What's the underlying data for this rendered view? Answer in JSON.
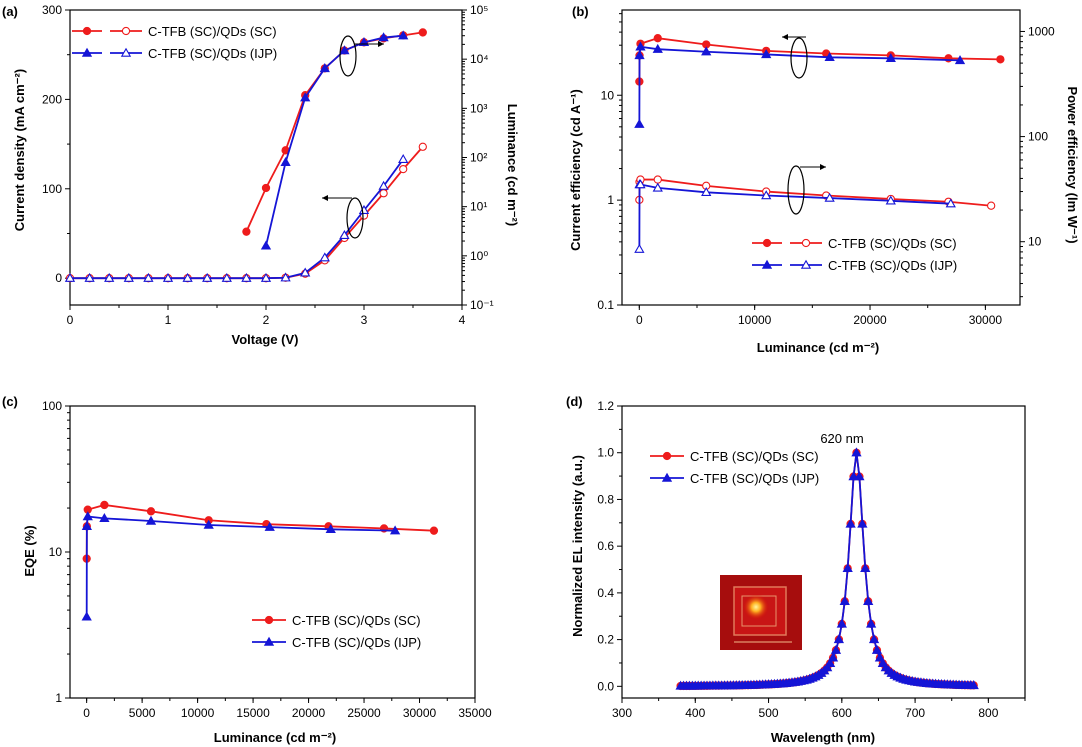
{
  "colors": {
    "sc": "#ee1c1c",
    "ijp": "#1515d6"
  },
  "legend_labels": {
    "sc": "C-TFB (SC)/QDs (SC)",
    "ijp": "C-TFB (SC)/QDs (IJP)"
  },
  "chart_data": [
    {
      "id": "a",
      "panel_label": "(a)",
      "type": "line",
      "xlabel": "Voltage (V)",
      "ylabel": "Current density (mA cm⁻²)",
      "y2label": "Luminance (cd m⁻²)",
      "xlim": [
        0,
        4
      ],
      "ylim": [
        -30,
        300
      ],
      "y2lim": [
        -1,
        5
      ],
      "y2scale": "log",
      "xticks": [
        "0",
        "1",
        "2",
        "3",
        "4"
      ],
      "yticks": [
        "0",
        "100",
        "200",
        "300"
      ],
      "y2ticks": [
        "10⁻¹",
        "10⁰",
        "10¹",
        "10²",
        "10³",
        "10⁴",
        "10⁵"
      ],
      "legend": "top-left",
      "series": [
        {
          "name": "C-TFB (SC)/QDs (SC)",
          "axis": "left",
          "marker": "circle-open",
          "x": [
            0,
            0.2,
            0.4,
            0.6,
            0.8,
            1.0,
            1.2,
            1.4,
            1.6,
            1.8,
            2.0,
            2.2,
            2.4,
            2.6,
            2.8,
            3.0,
            3.2,
            3.4,
            3.6
          ],
          "y": [
            0,
            0,
            0,
            0,
            0,
            0,
            0,
            0,
            0,
            0,
            0,
            0.5,
            5,
            20,
            45,
            70,
            95,
            122,
            147
          ]
        },
        {
          "name": "C-TFB (SC)/QDs (IJP)",
          "axis": "left",
          "marker": "triangle-open",
          "x": [
            0,
            0.2,
            0.4,
            0.6,
            0.8,
            1.0,
            1.2,
            1.4,
            1.6,
            1.8,
            2.0,
            2.2,
            2.4,
            2.6,
            2.8,
            3.0,
            3.2,
            3.4
          ],
          "y": [
            0,
            0,
            0,
            0,
            0,
            0,
            0,
            0,
            0,
            0,
            0,
            0.5,
            6,
            23,
            48,
            76,
            103,
            133
          ]
        },
        {
          "name": "C-TFB (SC)/QDs (SC)",
          "axis": "right",
          "marker": "circle-filled",
          "x": [
            1.8,
            2.0,
            2.2,
            2.4,
            2.6,
            2.8,
            3.0,
            3.2,
            3.4,
            3.6
          ],
          "y": [
            3.1,
            24,
            140,
            1850,
            6500,
            15000,
            22000,
            26500,
            30500,
            35000
          ]
        },
        {
          "name": "C-TFB (SC)/QDs (IJP)",
          "axis": "right",
          "marker": "triangle-filled",
          "x": [
            2.0,
            2.2,
            2.4,
            2.6,
            2.8,
            3.0,
            3.2,
            3.4
          ],
          "y": [
            1.6,
            80,
            1650,
            6500,
            15000,
            22000,
            27500,
            30000
          ]
        }
      ]
    },
    {
      "id": "b",
      "panel_label": "(b)",
      "type": "line",
      "xlabel": "Luminance (cd m⁻²)",
      "ylabel": "Current efficiency (cd A⁻¹)",
      "y2label": "Power efficiency (lm W⁻¹)",
      "xlim": [
        -1500,
        33000
      ],
      "ylim": [
        0.1,
        65
      ],
      "y2lim": [
        2.5,
        1600
      ],
      "yscale": "log",
      "y2scale": "log",
      "xticks": [
        "0",
        "10000",
        "20000",
        "30000"
      ],
      "yticks": [
        "0.1",
        "1",
        "10"
      ],
      "y2ticks": [
        "10",
        "100",
        "1000"
      ],
      "legend": "bottom-right",
      "series": [
        {
          "name": "C-TFB (SC)/QDs (SC)",
          "axis": "left",
          "marker": "circle-filled",
          "x": [
            5,
            20,
            100,
            1600,
            5800,
            11000,
            16200,
            21800,
            26800,
            31300
          ],
          "y": [
            13.5,
            24,
            31,
            35,
            30.5,
            26.5,
            25,
            24,
            22.5,
            22
          ]
        },
        {
          "name": "C-TFB (SC)/QDs (IJP)",
          "axis": "left",
          "marker": "triangle-filled",
          "x": [
            5,
            20,
            100,
            1600,
            5800,
            11000,
            16500,
            21800,
            27800
          ],
          "y": [
            5.3,
            24,
            29,
            27.5,
            26,
            24.5,
            23,
            22.5,
            21.5
          ]
        },
        {
          "name": "C-TFB (SC)/QDs (SC)",
          "axis": "right",
          "marker": "circle-open",
          "x": [
            5,
            20,
            100,
            1600,
            5800,
            11000,
            16200,
            21800,
            26800,
            30500
          ],
          "y": [
            25,
            37,
            39,
            39,
            34,
            30,
            27.5,
            25.5,
            24,
            22
          ]
        },
        {
          "name": "C-TFB (SC)/QDs (IJP)",
          "axis": "right",
          "marker": "triangle-open",
          "x": [
            5,
            20,
            100,
            1600,
            5800,
            11000,
            16500,
            21800,
            27000
          ],
          "y": [
            8.5,
            35,
            35,
            32.5,
            29.5,
            27.5,
            26,
            24.5,
            23
          ]
        }
      ]
    },
    {
      "id": "c",
      "panel_label": "(c)",
      "type": "line",
      "xlabel": "Luminance (cd m⁻²)",
      "ylabel": "EQE (%)",
      "xlim": [
        -1500,
        35000
      ],
      "ylim": [
        1,
        100
      ],
      "yscale": "log",
      "xticks": [
        "0",
        "5000",
        "10000",
        "15000",
        "20000",
        "25000",
        "30000",
        "35000"
      ],
      "yticks": [
        "1",
        "10",
        "100"
      ],
      "legend": "bottom-right",
      "series": [
        {
          "name": "C-TFB (SC)/QDs (SC)",
          "marker": "circle-filled",
          "x": [
            5,
            20,
            100,
            1600,
            5800,
            11000,
            16200,
            21800,
            26800,
            31300
          ],
          "y": [
            9,
            15,
            19.5,
            21,
            19,
            16.5,
            15.5,
            15,
            14.5,
            14
          ]
        },
        {
          "name": "C-TFB (SC)/QDs (IJP)",
          "marker": "triangle-filled",
          "x": [
            5,
            20,
            100,
            1600,
            5800,
            11000,
            16500,
            22000,
            27800
          ],
          "y": [
            3.6,
            15,
            17.5,
            17,
            16.3,
            15.3,
            14.8,
            14.3,
            14
          ]
        }
      ]
    },
    {
      "id": "d",
      "panel_label": "(d)",
      "type": "line",
      "xlabel": "Wavelength (nm)",
      "ylabel": "Normalized EL intensity (a.u.)",
      "xlim": [
        300,
        850
      ],
      "ylim": [
        -0.05,
        1.2
      ],
      "xticks": [
        "300",
        "400",
        "500",
        "600",
        "700",
        "800"
      ],
      "yticks": [
        "0.0",
        "0.2",
        "0.4",
        "0.6",
        "0.8",
        "1.0",
        "1.2"
      ],
      "legend": "top-left",
      "annotation": "620 nm",
      "inset": "device-photo",
      "spectrum": {
        "x_start": 380,
        "x_end": 780,
        "step": 4,
        "peak_nm": 620,
        "fwhm_nm": 25
      },
      "series": [
        {
          "name": "C-TFB (SC)/QDs (SC)",
          "marker": "circle-filled"
        },
        {
          "name": "C-TFB (SC)/QDs (IJP)",
          "marker": "triangle-filled"
        }
      ]
    }
  ]
}
